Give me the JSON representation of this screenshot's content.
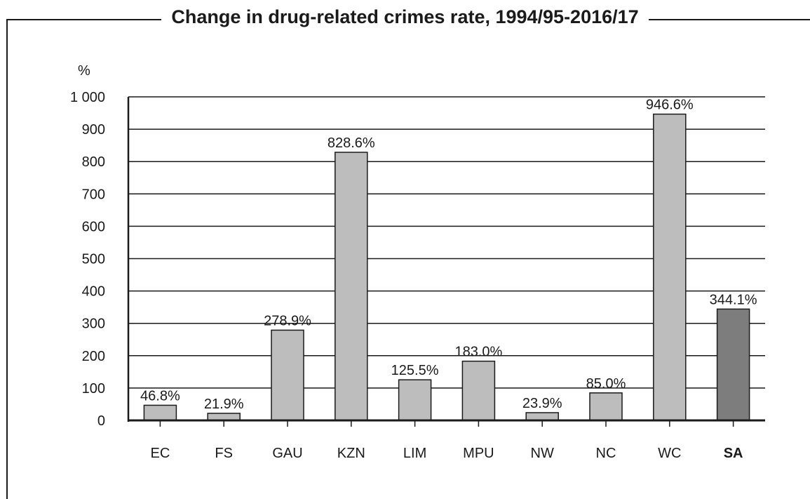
{
  "chart_data": {
    "type": "bar",
    "title": "Change in drug-related crimes rate, 1994/95-2016/17",
    "ylabel": "%",
    "ylim": [
      0,
      1000
    ],
    "yticks": [
      0,
      100,
      200,
      300,
      400,
      500,
      600,
      700,
      800,
      900,
      1000
    ],
    "ytick_labels": [
      "0",
      "100",
      "200",
      "300",
      "400",
      "500",
      "600",
      "700",
      "800",
      "900",
      "1 000"
    ],
    "grid": true,
    "categories": [
      "EC",
      "FS",
      "GAU",
      "KZN",
      "LIM",
      "MPU",
      "NW",
      "NC",
      "WC",
      "SA"
    ],
    "values": [
      46.8,
      21.9,
      278.9,
      828.6,
      125.5,
      183.0,
      23.9,
      85.0,
      946.6,
      344.1
    ],
    "value_labels": [
      "46.8%",
      "21.9%",
      "278.9%",
      "828.6%",
      "125.5%",
      "183.0%",
      "23.9%",
      "85.0%",
      "946.6%",
      "344.1%"
    ],
    "highlight_category": "SA",
    "colors": {
      "bar": "#bdbdbd",
      "highlight": "#7d7d7d",
      "grid": "#1a1a1a",
      "text": "#1a1a1a"
    }
  }
}
